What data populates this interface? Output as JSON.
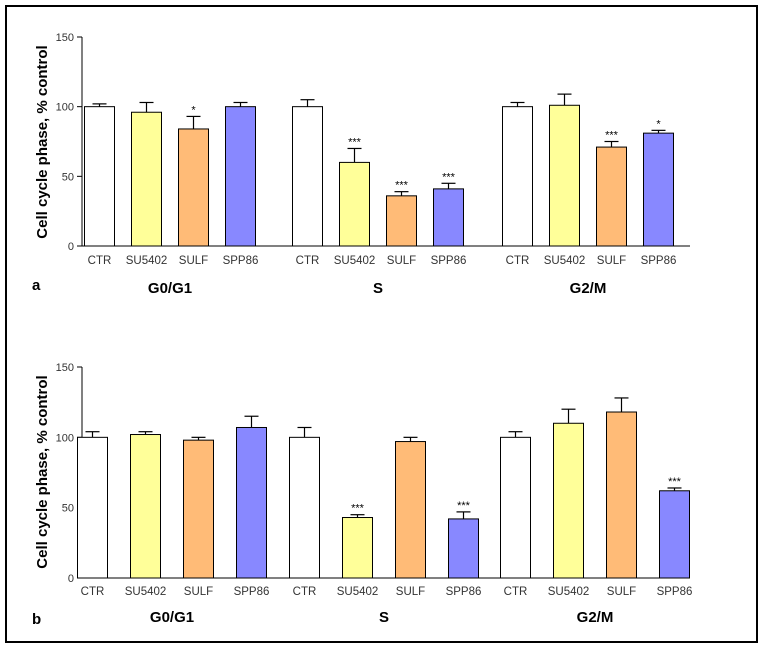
{
  "chart_data": [
    {
      "panel_label": "a",
      "type": "bar",
      "ylabel": "Cell cycle phase, % control",
      "ylim": [
        0,
        150
      ],
      "yticks": [
        "0",
        "50",
        "100",
        "150"
      ],
      "groups": [
        {
          "name": "G0/G1",
          "categories": [
            "CTR",
            "SU5402",
            "SULF",
            "SPP86"
          ],
          "values": [
            100,
            96,
            84,
            100
          ],
          "errors": [
            2,
            7,
            9,
            3
          ],
          "significance": [
            "",
            "",
            "*",
            ""
          ]
        },
        {
          "name": "S",
          "categories": [
            "CTR",
            "SU5402",
            "SULF",
            "SPP86"
          ],
          "values": [
            100,
            60,
            36,
            41
          ],
          "errors": [
            5,
            10,
            3,
            4
          ],
          "significance": [
            "",
            "***",
            "***",
            "***"
          ]
        },
        {
          "name": "G2/M",
          "categories": [
            "CTR",
            "SU5402",
            "SULF",
            "SPP86"
          ],
          "values": [
            100,
            101,
            71,
            81
          ],
          "errors": [
            3,
            8,
            4,
            2
          ],
          "significance": [
            "",
            "",
            "***",
            "*"
          ]
        }
      ],
      "colors": [
        "#ffffff",
        "#ffff99",
        "#ffbb77",
        "#8888ff"
      ]
    },
    {
      "panel_label": "b",
      "type": "bar",
      "ylabel": "Cell cycle phase, % control",
      "ylim": [
        0,
        150
      ],
      "yticks": [
        "0",
        "50",
        "100",
        "150"
      ],
      "groups": [
        {
          "name": "G0/G1",
          "categories": [
            "CTR",
            "SU5402",
            "SULF",
            "SPP86"
          ],
          "values": [
            100,
            102,
            98,
            107
          ],
          "errors": [
            4,
            2,
            2,
            8
          ],
          "significance": [
            "",
            "",
            "",
            ""
          ]
        },
        {
          "name": "S",
          "categories": [
            "CTR",
            "SU5402",
            "SULF",
            "SPP86"
          ],
          "values": [
            100,
            43,
            97,
            42
          ],
          "errors": [
            7,
            2,
            3,
            5
          ],
          "significance": [
            "",
            "***",
            "",
            "***"
          ]
        },
        {
          "name": "G2/M",
          "categories": [
            "CTR",
            "SU5402",
            "SULF",
            "SPP86"
          ],
          "values": [
            100,
            110,
            118,
            62
          ],
          "errors": [
            4,
            10,
            10,
            2
          ],
          "significance": [
            "",
            "",
            "",
            "***"
          ]
        }
      ],
      "colors": [
        "#ffffff",
        "#ffff99",
        "#ffbb77",
        "#8888ff"
      ]
    }
  ]
}
